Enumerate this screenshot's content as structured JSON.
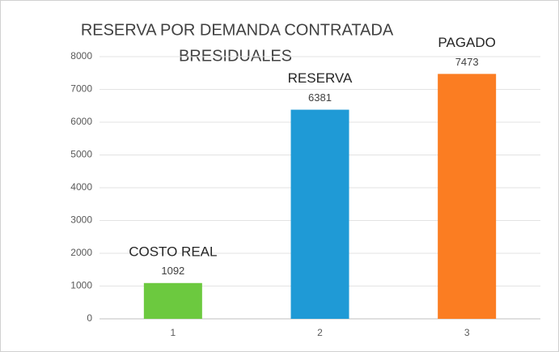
{
  "chart_data": {
    "type": "bar",
    "title": "RESERVA POR DEMANDA CONTRATADA",
    "subtitle": "BRESIDUALES",
    "categories": [
      "1",
      "2",
      "3"
    ],
    "values": [
      1092,
      6381,
      7473
    ],
    "bar_labels": [
      "COSTO REAL",
      "RESERVA",
      "PAGADO"
    ],
    "colors": [
      "#6cc93f",
      "#1f9ad6",
      "#fb7d22"
    ],
    "ylim": [
      0,
      8000
    ],
    "yticks": [
      0,
      1000,
      2000,
      3000,
      4000,
      5000,
      6000,
      7000,
      8000
    ],
    "grid": true
  }
}
